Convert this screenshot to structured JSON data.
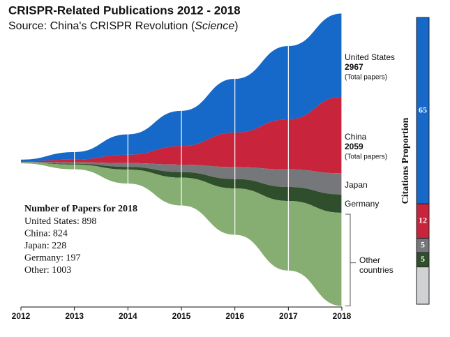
{
  "chart_data": [
    {
      "type": "stream",
      "title": "CRISPR-Related Publications 2012 - 2018",
      "subtitle": [
        "Source: China's CRISPR Revolution (",
        "Science",
        ")"
      ],
      "x": [
        2012,
        2013,
        2014,
        2015,
        2016,
        2017,
        2018
      ],
      "xlim": [
        2012,
        2018
      ],
      "xticks": [
        2012,
        2013,
        2014,
        2015,
        2016,
        2017,
        2018
      ],
      "total_label": "(Total papers)",
      "series": [
        {
          "name": "United States",
          "color": "#1668c9",
          "total": 2967,
          "values": [
            20,
            80,
            220,
            380,
            580,
            789,
            898
          ]
        },
        {
          "name": "China",
          "color": "#c8243b",
          "total": 2059,
          "values": [
            5,
            30,
            90,
            200,
            370,
            540,
            824
          ]
        },
        {
          "name": "Japan",
          "color": "#76777a",
          "values": [
            3,
            15,
            40,
            80,
            130,
            190,
            228
          ]
        },
        {
          "name": "Germany",
          "color": "#2f4e2b",
          "values": [
            2,
            10,
            30,
            60,
            100,
            150,
            197
          ]
        },
        {
          "name": "Other countries",
          "color": "#86ad72",
          "values": [
            10,
            50,
            150,
            300,
            500,
            750,
            1003
          ]
        }
      ],
      "note": {
        "title": "Number of Papers for 2018",
        "lines": [
          "United States: 898",
          "China: 824",
          "Japan: 228",
          "Germany: 197",
          "Other: 1003"
        ]
      }
    },
    {
      "type": "stacked-bar",
      "ylabel": "Citations Proportion",
      "values": [
        65,
        12,
        5,
        5,
        13
      ],
      "value_labels": [
        "65",
        "12",
        "5",
        "5",
        null
      ],
      "colors": [
        "#1668c9",
        "#c8243b",
        "#76777a",
        "#2f4e2b",
        "#d0d1d3"
      ]
    }
  ]
}
